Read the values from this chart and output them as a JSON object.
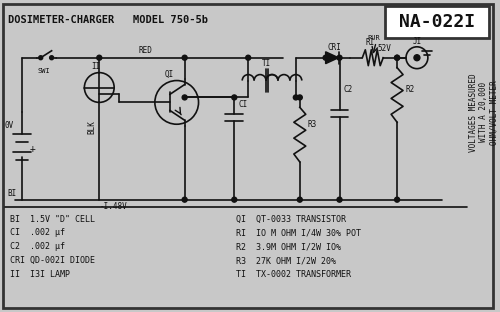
{
  "bg_color": "#c8c8c8",
  "border_color": "#222222",
  "title": "DOSIMETER-CHARGER   MODEL 750-5b",
  "model_box": "NA-022I",
  "bom_items": [
    "BI  1.5V \"D\" CELL",
    "CI  .002 μf",
    "C2  .002 μf",
    "CRI QD-002I DIODE",
    "II  I3I LAMP"
  ],
  "bom_items2": [
    "QI  QT-0033 TRANSISTOR",
    "RI  IO M OHM I/4W 30% POT",
    "R2  3.9M OHM I/2W IO%",
    "R3  27K OHM I/2W 20%",
    "TI  TX-0002 TRANSFORMER"
  ],
  "voltages_text": [
    "VOLTAGES MEASURED",
    "WITH A 20,000",
    "OHM/VOLT METER"
  ],
  "font_color": "#111111"
}
